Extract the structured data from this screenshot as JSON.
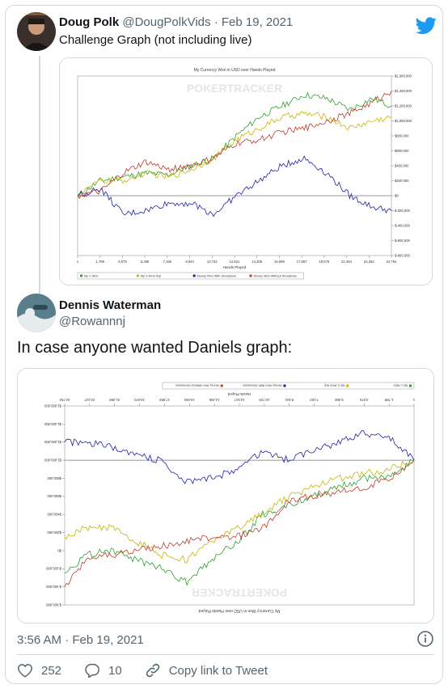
{
  "quoted_tweet": {
    "name": "Doug Polk",
    "handle": "@DougPolkVids",
    "separator": " · ",
    "date": "Feb 19, 2021",
    "text": "Challenge Graph (not including live)"
  },
  "tweet": {
    "name": "Dennis Waterman",
    "handle": "@Rowannnj",
    "text": "In case anyone wanted Daniels graph:",
    "timestamp": "3:56 AM · Feb 19, 2021"
  },
  "actions": {
    "likes": "252",
    "replies": "10",
    "copy_link": "Copy link to Tweet"
  },
  "chart_data": [
    {
      "type": "line",
      "title": "My Currency Won in USD over Hands Played",
      "watermark": "POKERTRACKER",
      "xlabel": "Hands Played",
      "x_ticks": [
        "1",
        "1,789",
        "3,578",
        "5,366",
        "7,155",
        "8,944",
        "10,732",
        "12,521",
        "14,309",
        "16,098",
        "17,887",
        "19,675",
        "21,464",
        "23,252",
        "24,754"
      ],
      "y_ticks": [
        "$1,600,000",
        "$1,400,000",
        "$1,200,000",
        "$1,000,000",
        "$800,000",
        "$600,000",
        "$400,000",
        "$200,000",
        "$0",
        "$-200,000",
        "$-400,000",
        "$-600,000",
        "$-800,000"
      ],
      "ylim": [
        -800000,
        1600000
      ],
      "xlim": [
        1,
        24754
      ],
      "series": [
        {
          "name": "My C Won",
          "color": "#2ca02c",
          "x": [
            1,
            1789,
            3578,
            5366,
            7155,
            8944,
            10732,
            12521,
            14309,
            16098,
            17887,
            19675,
            21464,
            23252,
            24754
          ],
          "values": [
            0,
            200000,
            250000,
            300000,
            280000,
            400000,
            500000,
            800000,
            1050000,
            1200000,
            1350000,
            1300000,
            1150000,
            1300000,
            1200000
          ]
        },
        {
          "name": "My C All-In Adj",
          "color": "#c8b400",
          "x": [
            1,
            1789,
            3578,
            5366,
            7155,
            8944,
            10732,
            12521,
            14309,
            16098,
            17887,
            19675,
            21464,
            23252,
            24754
          ],
          "values": [
            0,
            200000,
            200000,
            300000,
            250000,
            350000,
            500000,
            750000,
            900000,
            1050000,
            1100000,
            1050000,
            900000,
            1000000,
            1050000
          ]
        },
        {
          "name": "Money Won With Showdown",
          "color": "#1f1fa8",
          "x": [
            1,
            1789,
            3578,
            5366,
            7155,
            8944,
            10732,
            12521,
            14309,
            16098,
            17887,
            19675,
            21464,
            23252,
            24754
          ],
          "values": [
            0,
            100000,
            -250000,
            -200000,
            -100000,
            -100000,
            -250000,
            0,
            200000,
            400000,
            500000,
            300000,
            0,
            -150000,
            -200000
          ]
        },
        {
          "name": "Money Won Without Showdown",
          "color": "#c0392b",
          "x": [
            1,
            1789,
            3578,
            5366,
            7155,
            8944,
            10732,
            12521,
            14309,
            16098,
            17887,
            19675,
            21464,
            23252,
            24754
          ],
          "values": [
            0,
            50000,
            300000,
            450000,
            350000,
            400000,
            500000,
            700000,
            750000,
            850000,
            900000,
            1000000,
            1100000,
            1250000,
            1400000
          ]
        }
      ]
    },
    {
      "type": "line",
      "title": "My Currency Won in USD over Hands Played",
      "watermark": "POKERTRACKER",
      "xlabel": "Hands Played",
      "x_ticks": [
        "1",
        "1,788",
        "3,576",
        "5,365",
        "7,153",
        "8,941",
        "10,729",
        "12,517",
        "14,306",
        "16,094",
        "17,882",
        "19,670",
        "21,458",
        "23,247",
        "24,754"
      ],
      "y_ticks": [
        "$-600,000",
        "$-400,000",
        "$-200,000",
        "$0",
        "$200,000",
        "$400,000",
        "$600,000",
        "$800,000",
        "$1,000,000",
        "$1,200,000",
        "$1,400,000",
        "$1,600,000"
      ],
      "ylim": [
        -600000,
        1600000
      ],
      "xlim": [
        1,
        24754
      ],
      "note": "image is rendered rotated 180 degrees",
      "series": [
        {
          "name": "My C Won",
          "color": "#2ca02c",
          "x": [
            1,
            1788,
            3576,
            5365,
            7153,
            8941,
            10729,
            12517,
            14306,
            16094,
            17882,
            19670,
            21458,
            23247,
            24754
          ],
          "values": [
            0,
            200000,
            200000,
            300000,
            400000,
            500000,
            600000,
            900000,
            1100000,
            1350000,
            1200000,
            1100000,
            1000000,
            1050000,
            1250000
          ]
        },
        {
          "name": "My C All-In Adj",
          "color": "#c8b400",
          "x": [
            1,
            1788,
            3576,
            5365,
            7153,
            8941,
            10729,
            12517,
            14306,
            16094,
            17882,
            19670,
            21458,
            23247,
            24754
          ],
          "values": [
            0,
            100000,
            150000,
            200000,
            300000,
            400000,
            600000,
            750000,
            900000,
            1100000,
            1050000,
            900000,
            750000,
            750000,
            850000
          ]
        },
        {
          "name": "Money Won With Showdown",
          "color": "#1f1fa8",
          "x": [
            1,
            1788,
            3576,
            5365,
            7153,
            8941,
            10729,
            12517,
            14306,
            16094,
            17882,
            19670,
            21458,
            23247,
            24754
          ],
          "values": [
            0,
            -250000,
            -300000,
            -200000,
            -100000,
            0,
            -100000,
            100000,
            200000,
            250000,
            0,
            -50000,
            -150000,
            -200000,
            -200000
          ]
        },
        {
          "name": "Money Won Without Showdown",
          "color": "#c0392b",
          "x": [
            1,
            1788,
            3576,
            5365,
            7153,
            8941,
            10729,
            12517,
            14306,
            16094,
            17882,
            19670,
            21458,
            23247,
            24754
          ],
          "values": [
            0,
            200000,
            300000,
            350000,
            400000,
            450000,
            750000,
            850000,
            850000,
            900000,
            950000,
            1000000,
            1050000,
            1100000,
            1400000
          ]
        }
      ]
    }
  ]
}
